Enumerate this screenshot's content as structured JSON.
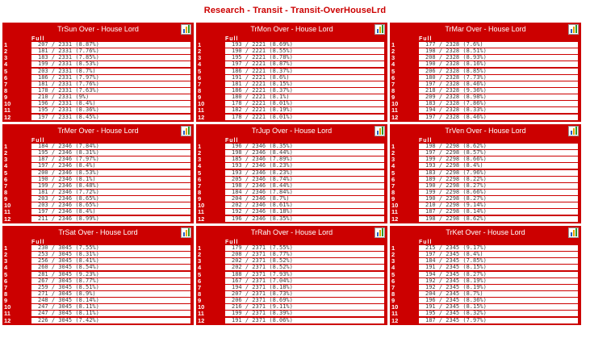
{
  "page": {
    "title": "Research -    Transit - Transit-OverHouseLrd"
  },
  "colors": {
    "panel_red": "#cc0000",
    "cell_bg": "#ffffff",
    "title_red": "#cc0000"
  },
  "icons": {
    "chart": "bar-chart-icon"
  },
  "panels": [
    {
      "title": "TrSun Over - House Lord",
      "col_header": "Full",
      "rows": [
        {
          "num": "1",
          "value": "207 / 2331 (8.87%)"
        },
        {
          "num": "2",
          "value": "181 / 2331 (7.76%)"
        },
        {
          "num": "3",
          "value": "183 / 2331 (7.85%)"
        },
        {
          "num": "4",
          "value": "199 / 2331 (8.53%)"
        },
        {
          "num": "5",
          "value": "203 / 2331 (8.7%)"
        },
        {
          "num": "6",
          "value": "186 / 2331 (7.97%)"
        },
        {
          "num": "7",
          "value": "181 / 2331 (7.76%)"
        },
        {
          "num": "8",
          "value": "178 / 2331 (7.63%)"
        },
        {
          "num": "9",
          "value": "210 / 2331 (9%)"
        },
        {
          "num": "10",
          "value": "196 / 2331 (8.4%)"
        },
        {
          "num": "11",
          "value": "195 / 2331 (8.36%)"
        },
        {
          "num": "12",
          "value": "197 / 2331 (8.45%)"
        }
      ]
    },
    {
      "title": "TrMon Over - House Lord",
      "col_header": "Full",
      "rows": [
        {
          "num": "1",
          "value": "193 / 2221 (8.69%)"
        },
        {
          "num": "2",
          "value": "190 / 2221 (8.55%)"
        },
        {
          "num": "3",
          "value": "195 / 2221 (8.78%)"
        },
        {
          "num": "4",
          "value": "197 / 2221 (8.87%)"
        },
        {
          "num": "5",
          "value": "186 / 2221 (8.37%)"
        },
        {
          "num": "6",
          "value": "191 / 2221 (8.6%)"
        },
        {
          "num": "7",
          "value": "181 / 2221 (8.15%)"
        },
        {
          "num": "8",
          "value": "186 / 2221 (8.37%)"
        },
        {
          "num": "9",
          "value": "180 / 2221 (8.1%)"
        },
        {
          "num": "10",
          "value": "178 / 2221 (8.01%)"
        },
        {
          "num": "11",
          "value": "182 / 2221 (8.19%)"
        },
        {
          "num": "12",
          "value": "178 / 2221 (8.01%)"
        }
      ]
    },
    {
      "title": "TrMar Over - House Lord",
      "col_header": "Full",
      "rows": [
        {
          "num": "1",
          "value": "177 / 2328 (7.6%)"
        },
        {
          "num": "2",
          "value": "198 / 2328 (8.51%)"
        },
        {
          "num": "3",
          "value": "208 / 2328 (8.93%)"
        },
        {
          "num": "4",
          "value": "190 / 2328 (8.16%)"
        },
        {
          "num": "5",
          "value": "206 / 2328 (8.85%)"
        },
        {
          "num": "6",
          "value": "180 / 2328 (7.73%)"
        },
        {
          "num": "7",
          "value": "197 / 2328 (8.46%)"
        },
        {
          "num": "8",
          "value": "218 / 2328 (9.36%)"
        },
        {
          "num": "9",
          "value": "209 / 2328 (8.98%)"
        },
        {
          "num": "10",
          "value": "183 / 2328 (7.86%)"
        },
        {
          "num": "11",
          "value": "194 / 2328 (8.33%)"
        },
        {
          "num": "12",
          "value": "197 / 2328 (8.46%)"
        }
      ]
    },
    {
      "title": "TrMer Over - House Lord",
      "col_header": "Full",
      "rows": [
        {
          "num": "1",
          "value": "184 / 2346 (7.84%)"
        },
        {
          "num": "2",
          "value": "195 / 2346 (8.31%)"
        },
        {
          "num": "3",
          "value": "187 / 2346 (7.97%)"
        },
        {
          "num": "4",
          "value": "197 / 2346 (8.4%)"
        },
        {
          "num": "5",
          "value": "200 / 2346 (8.53%)"
        },
        {
          "num": "6",
          "value": "190 / 2346 (8.1%)"
        },
        {
          "num": "7",
          "value": "199 / 2346 (8.48%)"
        },
        {
          "num": "8",
          "value": "181 / 2346 (7.72%)"
        },
        {
          "num": "9",
          "value": "203 / 2346 (8.65%)"
        },
        {
          "num": "10",
          "value": "203 / 2346 (8.65%)"
        },
        {
          "num": "11",
          "value": "197 / 2346 (8.4%)"
        },
        {
          "num": "12",
          "value": "211 / 2346 (8.99%)"
        }
      ]
    },
    {
      "title": "TrJup Over - House Lord",
      "col_header": "Full",
      "rows": [
        {
          "num": "1",
          "value": "196 / 2346 (8.35%)"
        },
        {
          "num": "2",
          "value": "198 / 2346 (8.44%)"
        },
        {
          "num": "3",
          "value": "185 / 2346 (7.89%)"
        },
        {
          "num": "4",
          "value": "193 / 2346 (8.23%)"
        },
        {
          "num": "5",
          "value": "193 / 2346 (8.23%)"
        },
        {
          "num": "6",
          "value": "205 / 2346 (8.74%)"
        },
        {
          "num": "7",
          "value": "198 / 2346 (8.44%)"
        },
        {
          "num": "8",
          "value": "184 / 2346 (7.84%)"
        },
        {
          "num": "9",
          "value": "204 / 2346 (8.7%)"
        },
        {
          "num": "10",
          "value": "202 / 2346 (8.61%)"
        },
        {
          "num": "11",
          "value": "192 / 2346 (8.18%)"
        },
        {
          "num": "12",
          "value": "196 / 2346 (8.35%)"
        }
      ]
    },
    {
      "title": "TrVen Over - House Lord",
      "col_header": "Full",
      "rows": [
        {
          "num": "1",
          "value": "198 / 2298 (8.62%)"
        },
        {
          "num": "2",
          "value": "197 / 2298 (8.57%)"
        },
        {
          "num": "3",
          "value": "199 / 2298 (8.66%)"
        },
        {
          "num": "4",
          "value": "193 / 2298 (8.4%)"
        },
        {
          "num": "5",
          "value": "183 / 2298 (7.96%)"
        },
        {
          "num": "6",
          "value": "189 / 2298 (8.22%)"
        },
        {
          "num": "7",
          "value": "190 / 2298 (8.27%)"
        },
        {
          "num": "8",
          "value": "199 / 2298 (8.66%)"
        },
        {
          "num": "9",
          "value": "190 / 2298 (8.27%)"
        },
        {
          "num": "10",
          "value": "210 / 2298 (9.14%)"
        },
        {
          "num": "11",
          "value": "187 / 2298 (8.14%)"
        },
        {
          "num": "12",
          "value": "198 / 2298 (8.62%)"
        }
      ]
    },
    {
      "title": "TrSat Over - House Lord",
      "col_header": "Full",
      "rows": [
        {
          "num": "1",
          "value": "230 / 3045 (7.55%)"
        },
        {
          "num": "2",
          "value": "253 / 3045 (8.31%)"
        },
        {
          "num": "3",
          "value": "256 / 3045 (8.41%)"
        },
        {
          "num": "4",
          "value": "260 / 3045 (8.54%)"
        },
        {
          "num": "5",
          "value": "281 / 3045 (9.23%)"
        },
        {
          "num": "6",
          "value": "267 / 3045 (8.77%)"
        },
        {
          "num": "7",
          "value": "259 / 3045 (8.51%)"
        },
        {
          "num": "8",
          "value": "271 / 3045 (8.9%)"
        },
        {
          "num": "9",
          "value": "248 / 3045 (8.14%)"
        },
        {
          "num": "10",
          "value": "247 / 3045 (8.11%)"
        },
        {
          "num": "11",
          "value": "247 / 3045 (8.11%)"
        },
        {
          "num": "12",
          "value": "226 / 3045 (7.42%)"
        }
      ]
    },
    {
      "title": "TrRah Over - House Lord",
      "col_header": "Full",
      "rows": [
        {
          "num": "1",
          "value": "179 / 2371 (7.55%)"
        },
        {
          "num": "2",
          "value": "208 / 2371 (8.77%)"
        },
        {
          "num": "3",
          "value": "202 / 2371 (8.52%)"
        },
        {
          "num": "4",
          "value": "202 / 2371 (8.52%)"
        },
        {
          "num": "5",
          "value": "188 / 2371 (7.93%)"
        },
        {
          "num": "6",
          "value": "167 / 2371 (7.04%)"
        },
        {
          "num": "7",
          "value": "194 / 2371 (8.18%)"
        },
        {
          "num": "8",
          "value": "207 / 2371 (8.73%)"
        },
        {
          "num": "9",
          "value": "206 / 2371 (8.69%)"
        },
        {
          "num": "10",
          "value": "216 / 2371 (9.11%)"
        },
        {
          "num": "11",
          "value": "199 / 2371 (8.39%)"
        },
        {
          "num": "12",
          "value": "191 / 2371 (8.06%)"
        }
      ]
    },
    {
      "title": "TrKet Over - House Lord",
      "col_header": "Full",
      "rows": [
        {
          "num": "1",
          "value": "215 / 2345 (9.17%)"
        },
        {
          "num": "2",
          "value": "197 / 2345 (8.4%)"
        },
        {
          "num": "3",
          "value": "184 / 2345 (7.85%)"
        },
        {
          "num": "4",
          "value": "191 / 2345 (8.15%)"
        },
        {
          "num": "5",
          "value": "194 / 2345 (8.27%)"
        },
        {
          "num": "6",
          "value": "192 / 2345 (8.19%)"
        },
        {
          "num": "7",
          "value": "192 / 2345 (8.19%)"
        },
        {
          "num": "8",
          "value": "204 / 2345 (8.7%)"
        },
        {
          "num": "9",
          "value": "196 / 2345 (8.36%)"
        },
        {
          "num": "10",
          "value": "191 / 2345 (8.15%)"
        },
        {
          "num": "11",
          "value": "195 / 2345 (8.32%)"
        },
        {
          "num": "12",
          "value": "187 / 2345 (7.97%)"
        }
      ]
    }
  ]
}
